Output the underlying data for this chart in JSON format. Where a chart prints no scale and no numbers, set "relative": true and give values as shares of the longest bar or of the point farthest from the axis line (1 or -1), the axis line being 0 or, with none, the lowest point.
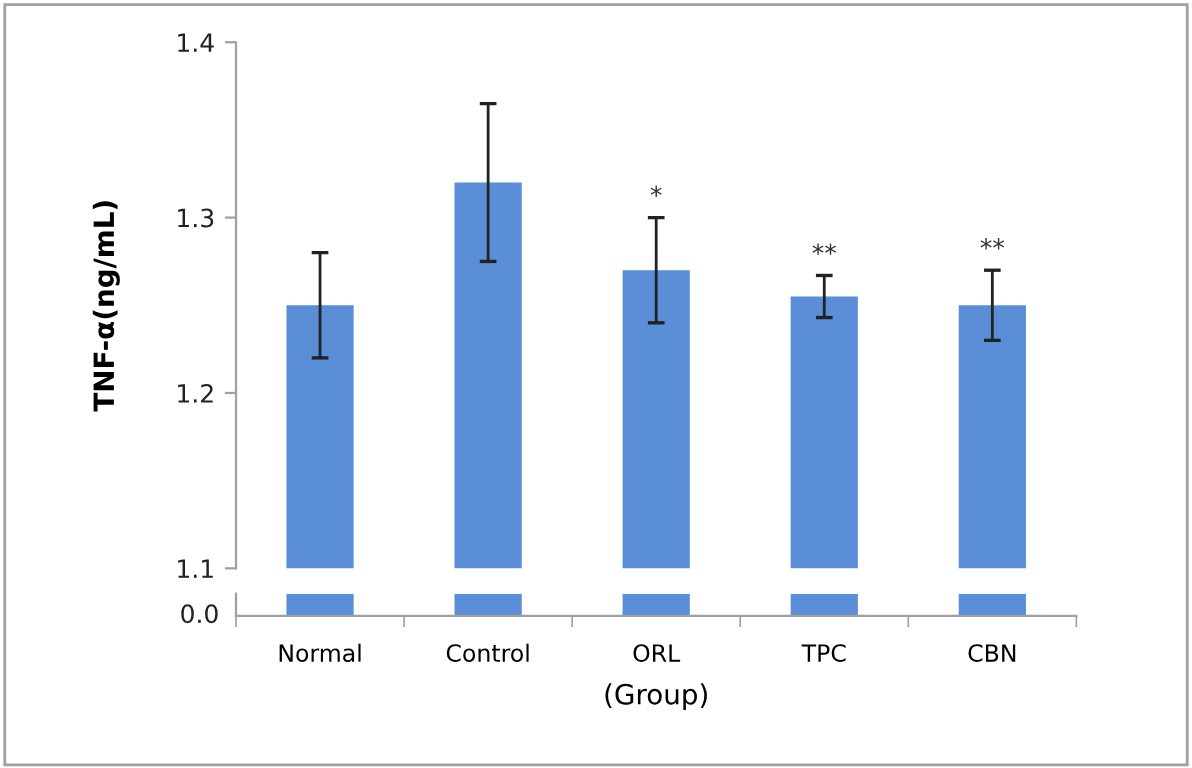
{
  "chart_data": [
    {
      "type": "bar",
      "ylabel": "TNF-α(ng/mL)",
      "values": [
        1.25,
        1.32,
        1.27,
        1.255,
        1.25
      ],
      "errors": [
        0.03,
        0.045,
        0.03,
        0.012,
        0.02
      ],
      "color": "#5a8ed6",
      "ylim": [
        1.1,
        1.4
      ],
      "yticks": [
        1.1,
        1.2,
        1.3,
        1.4
      ],
      "tick_labels": "y",
      "grid": false,
      "annotations": [
        "*",
        "**",
        "**"
      ]
    },
    {
      "type": "bar",
      "xlabel": "(Group)",
      "categories": [
        "Normal",
        "Control",
        "ORL",
        "TPC",
        "CBN"
      ],
      "values": [
        1,
        1,
        1,
        1,
        1
      ],
      "relative": true,
      "color": "#5a8ed6",
      "annotations": [
        "0.0"
      ],
      "grid": false
    }
  ]
}
